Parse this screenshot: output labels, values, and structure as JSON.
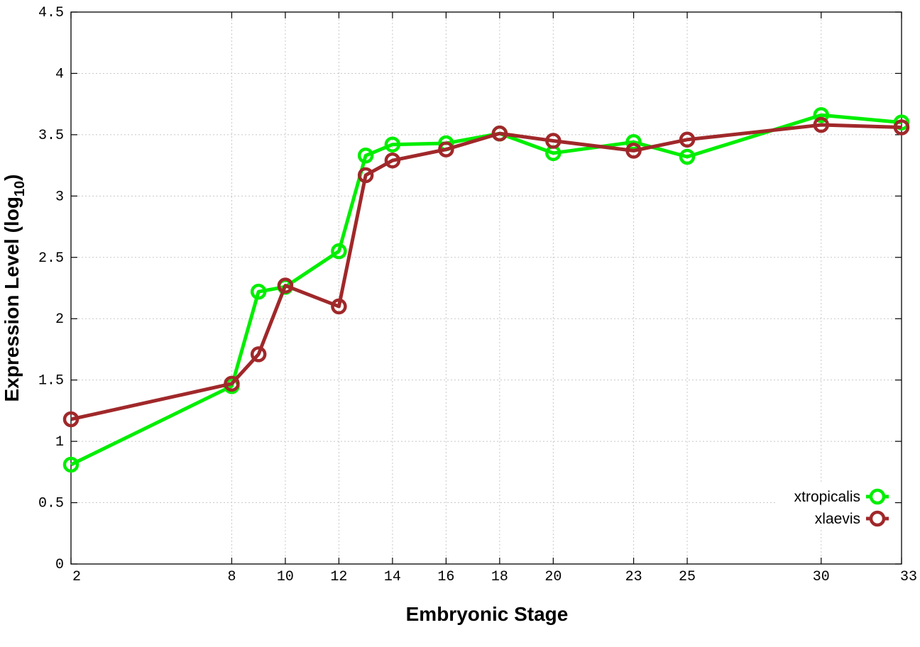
{
  "chart_data": {
    "type": "line",
    "title": "",
    "xlabel": "Embryonic Stage",
    "ylabel_main": "Expression Level (log",
    "ylabel_sub": "10",
    "ylabel_end": ")",
    "x_ticks": [
      2,
      8,
      10,
      12,
      14,
      16,
      18,
      20,
      23,
      25,
      30,
      33
    ],
    "x_tick_labels": [
      "2",
      "8",
      "10",
      "12",
      "14",
      "16",
      "18",
      "20",
      "23",
      "25",
      "30",
      "33"
    ],
    "y_ticks": [
      0,
      0.5,
      1,
      1.5,
      2,
      2.5,
      3,
      3.5,
      4,
      4.5
    ],
    "y_tick_labels": [
      "0",
      "0.5",
      "1",
      "1.5",
      "2",
      "2.5",
      "3",
      "3.5",
      "4",
      "4.5"
    ],
    "xlim": [
      2,
      33
    ],
    "ylim": [
      0,
      4.5
    ],
    "grid": true,
    "legend_position": "bottom-right",
    "x": [
      2,
      8,
      9,
      10,
      12,
      13,
      14,
      16,
      18,
      20,
      23,
      25,
      30,
      33
    ],
    "series": [
      {
        "name": "xtropicalis",
        "color": "#00ee00",
        "values": [
          0.81,
          1.45,
          2.22,
          2.26,
          2.55,
          3.33,
          3.42,
          3.43,
          3.51,
          3.35,
          3.44,
          3.32,
          3.66,
          3.6
        ]
      },
      {
        "name": "xlaevis",
        "color": "#a0282a",
        "values": [
          1.18,
          1.47,
          1.71,
          2.27,
          2.1,
          3.17,
          3.29,
          3.38,
          3.51,
          3.45,
          3.37,
          3.46,
          3.58,
          3.56
        ]
      }
    ]
  }
}
